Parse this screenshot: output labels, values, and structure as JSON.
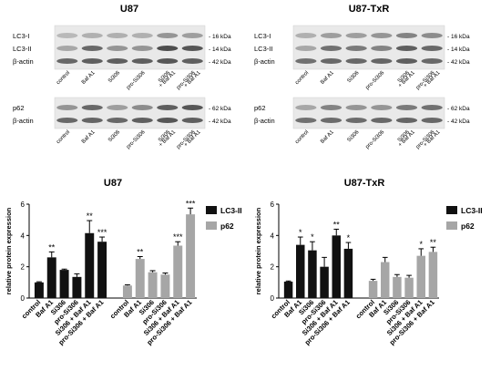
{
  "blots": [
    {
      "title": "U87",
      "rows_top": [
        "LC3-I",
        "LC3-II",
        "β-actin"
      ],
      "kda_top": [
        "16 kDa",
        "14 kDa",
        "42 kDa"
      ],
      "rows_bottom": [
        "p62",
        "β-actin"
      ],
      "kda_bottom": [
        "62 kDa",
        "42 kDa"
      ],
      "lanes": [
        "control",
        "Baf A1",
        "Si306",
        "pro-Si306",
        "Si306\n+ Baf A1",
        "pro-Si306\n+ Baf A1"
      ]
    },
    {
      "title": "U87-TxR",
      "rows_top": [
        "LC3-I",
        "LC3-II",
        "β-actin"
      ],
      "kda_top": [
        "16 kDa",
        "14 kDa",
        "42 kDa"
      ],
      "rows_bottom": [
        "p62",
        "β-actin"
      ],
      "kda_bottom": [
        "62 kDa",
        "42 kDa"
      ],
      "lanes": [
        "control",
        "Baf A1",
        "Si306",
        "pro-Si306",
        "Si306\n+ Baf A1",
        "pro-Si306\n+ Baf A1"
      ]
    }
  ],
  "colors": {
    "lc3": "#111111",
    "p62": "#a6a6a6"
  },
  "chart_data": [
    {
      "type": "bar",
      "title": "U87",
      "ylabel": "relative protein expression",
      "ylim": [
        0,
        6
      ],
      "yticks": [
        0,
        2,
        4,
        6
      ],
      "categories": [
        "control",
        "Baf A1",
        "Si306",
        "pro-Si306",
        "Si306 + Baf A1",
        "pro-Si306 + Baf A1"
      ],
      "series": [
        {
          "name": "LC3-II",
          "values": [
            1.0,
            2.6,
            1.8,
            1.35,
            4.15,
            3.6
          ],
          "errors": [
            0.04,
            0.35,
            0.05,
            0.2,
            0.8,
            0.3
          ],
          "sig": [
            "",
            "**",
            "",
            "",
            "**",
            "***"
          ]
        },
        {
          "name": "p62",
          "values": [
            0.8,
            2.5,
            1.65,
            1.5,
            3.35,
            5.35
          ],
          "errors": [
            0.05,
            0.15,
            0.1,
            0.1,
            0.25,
            0.4
          ],
          "sig": [
            "",
            "**",
            "",
            "",
            "***",
            "***"
          ]
        }
      ],
      "legend": "top-right"
    },
    {
      "type": "bar",
      "title": "U87-TxR",
      "ylabel": "relative protein expression",
      "ylim": [
        0,
        6
      ],
      "yticks": [
        0,
        2,
        4,
        6
      ],
      "categories": [
        "control",
        "Baf A1",
        "Si306",
        "pro-Si306",
        "Si306 + Baf A1",
        "pro-Si306 + Baf A1"
      ],
      "series": [
        {
          "name": "LC3-II",
          "values": [
            1.05,
            3.4,
            3.05,
            2.0,
            4.0,
            3.15
          ],
          "errors": [
            0.04,
            0.5,
            0.55,
            0.6,
            0.4,
            0.4
          ],
          "sig": [
            "",
            "*",
            "*",
            "",
            "**",
            "*"
          ]
        },
        {
          "name": "p62",
          "values": [
            1.1,
            2.3,
            1.35,
            1.3,
            2.7,
            2.95
          ],
          "errors": [
            0.1,
            0.3,
            0.15,
            0.15,
            0.45,
            0.3
          ],
          "sig": [
            "",
            "",
            "",
            "",
            "*",
            "**"
          ]
        }
      ],
      "legend": "top-right"
    }
  ]
}
